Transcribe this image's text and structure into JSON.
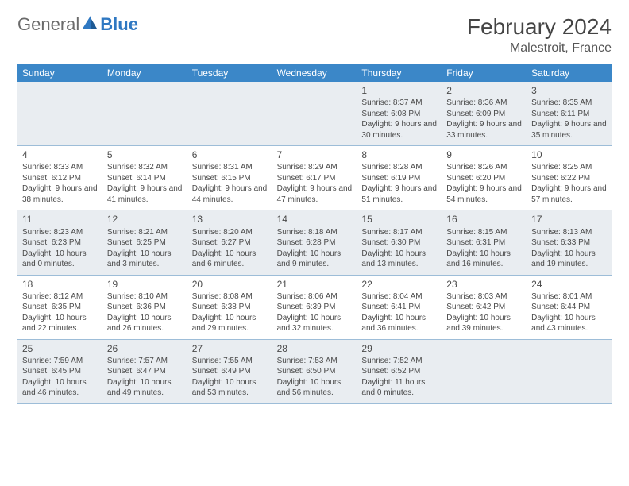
{
  "brand": {
    "word1": "General",
    "word2": "Blue"
  },
  "header": {
    "title": "February 2024",
    "location": "Malestroit, France"
  },
  "colors": {
    "header_bg": "#3b87c8",
    "header_text": "#ffffff",
    "border": "#9dbdd8",
    "shade_bg": "#e9edf1",
    "text": "#464646",
    "logo_gray": "#6a6a6a",
    "logo_blue": "#2f78c2"
  },
  "typography": {
    "title_fontsize": 28,
    "location_fontsize": 16,
    "dayhead_fontsize": 12,
    "cell_fontsize": 10
  },
  "dayNames": [
    "Sunday",
    "Monday",
    "Tuesday",
    "Wednesday",
    "Thursday",
    "Friday",
    "Saturday"
  ],
  "weeks": [
    [
      {
        "blank": true
      },
      {
        "blank": true
      },
      {
        "blank": true
      },
      {
        "blank": true
      },
      {
        "n": "1",
        "sr": "Sunrise: 8:37 AM",
        "ss": "Sunset: 6:08 PM",
        "dl": "Daylight: 9 hours and 30 minutes."
      },
      {
        "n": "2",
        "sr": "Sunrise: 8:36 AM",
        "ss": "Sunset: 6:09 PM",
        "dl": "Daylight: 9 hours and 33 minutes."
      },
      {
        "n": "3",
        "sr": "Sunrise: 8:35 AM",
        "ss": "Sunset: 6:11 PM",
        "dl": "Daylight: 9 hours and 35 minutes."
      }
    ],
    [
      {
        "n": "4",
        "sr": "Sunrise: 8:33 AM",
        "ss": "Sunset: 6:12 PM",
        "dl": "Daylight: 9 hours and 38 minutes."
      },
      {
        "n": "5",
        "sr": "Sunrise: 8:32 AM",
        "ss": "Sunset: 6:14 PM",
        "dl": "Daylight: 9 hours and 41 minutes."
      },
      {
        "n": "6",
        "sr": "Sunrise: 8:31 AM",
        "ss": "Sunset: 6:15 PM",
        "dl": "Daylight: 9 hours and 44 minutes."
      },
      {
        "n": "7",
        "sr": "Sunrise: 8:29 AM",
        "ss": "Sunset: 6:17 PM",
        "dl": "Daylight: 9 hours and 47 minutes."
      },
      {
        "n": "8",
        "sr": "Sunrise: 8:28 AM",
        "ss": "Sunset: 6:19 PM",
        "dl": "Daylight: 9 hours and 51 minutes."
      },
      {
        "n": "9",
        "sr": "Sunrise: 8:26 AM",
        "ss": "Sunset: 6:20 PM",
        "dl": "Daylight: 9 hours and 54 minutes."
      },
      {
        "n": "10",
        "sr": "Sunrise: 8:25 AM",
        "ss": "Sunset: 6:22 PM",
        "dl": "Daylight: 9 hours and 57 minutes."
      }
    ],
    [
      {
        "n": "11",
        "sr": "Sunrise: 8:23 AM",
        "ss": "Sunset: 6:23 PM",
        "dl": "Daylight: 10 hours and 0 minutes."
      },
      {
        "n": "12",
        "sr": "Sunrise: 8:21 AM",
        "ss": "Sunset: 6:25 PM",
        "dl": "Daylight: 10 hours and 3 minutes."
      },
      {
        "n": "13",
        "sr": "Sunrise: 8:20 AM",
        "ss": "Sunset: 6:27 PM",
        "dl": "Daylight: 10 hours and 6 minutes."
      },
      {
        "n": "14",
        "sr": "Sunrise: 8:18 AM",
        "ss": "Sunset: 6:28 PM",
        "dl": "Daylight: 10 hours and 9 minutes."
      },
      {
        "n": "15",
        "sr": "Sunrise: 8:17 AM",
        "ss": "Sunset: 6:30 PM",
        "dl": "Daylight: 10 hours and 13 minutes."
      },
      {
        "n": "16",
        "sr": "Sunrise: 8:15 AM",
        "ss": "Sunset: 6:31 PM",
        "dl": "Daylight: 10 hours and 16 minutes."
      },
      {
        "n": "17",
        "sr": "Sunrise: 8:13 AM",
        "ss": "Sunset: 6:33 PM",
        "dl": "Daylight: 10 hours and 19 minutes."
      }
    ],
    [
      {
        "n": "18",
        "sr": "Sunrise: 8:12 AM",
        "ss": "Sunset: 6:35 PM",
        "dl": "Daylight: 10 hours and 22 minutes."
      },
      {
        "n": "19",
        "sr": "Sunrise: 8:10 AM",
        "ss": "Sunset: 6:36 PM",
        "dl": "Daylight: 10 hours and 26 minutes."
      },
      {
        "n": "20",
        "sr": "Sunrise: 8:08 AM",
        "ss": "Sunset: 6:38 PM",
        "dl": "Daylight: 10 hours and 29 minutes."
      },
      {
        "n": "21",
        "sr": "Sunrise: 8:06 AM",
        "ss": "Sunset: 6:39 PM",
        "dl": "Daylight: 10 hours and 32 minutes."
      },
      {
        "n": "22",
        "sr": "Sunrise: 8:04 AM",
        "ss": "Sunset: 6:41 PM",
        "dl": "Daylight: 10 hours and 36 minutes."
      },
      {
        "n": "23",
        "sr": "Sunrise: 8:03 AM",
        "ss": "Sunset: 6:42 PM",
        "dl": "Daylight: 10 hours and 39 minutes."
      },
      {
        "n": "24",
        "sr": "Sunrise: 8:01 AM",
        "ss": "Sunset: 6:44 PM",
        "dl": "Daylight: 10 hours and 43 minutes."
      }
    ],
    [
      {
        "n": "25",
        "sr": "Sunrise: 7:59 AM",
        "ss": "Sunset: 6:45 PM",
        "dl": "Daylight: 10 hours and 46 minutes."
      },
      {
        "n": "26",
        "sr": "Sunrise: 7:57 AM",
        "ss": "Sunset: 6:47 PM",
        "dl": "Daylight: 10 hours and 49 minutes."
      },
      {
        "n": "27",
        "sr": "Sunrise: 7:55 AM",
        "ss": "Sunset: 6:49 PM",
        "dl": "Daylight: 10 hours and 53 minutes."
      },
      {
        "n": "28",
        "sr": "Sunrise: 7:53 AM",
        "ss": "Sunset: 6:50 PM",
        "dl": "Daylight: 10 hours and 56 minutes."
      },
      {
        "n": "29",
        "sr": "Sunrise: 7:52 AM",
        "ss": "Sunset: 6:52 PM",
        "dl": "Daylight: 11 hours and 0 minutes."
      },
      {
        "blank": true
      },
      {
        "blank": true
      }
    ]
  ]
}
